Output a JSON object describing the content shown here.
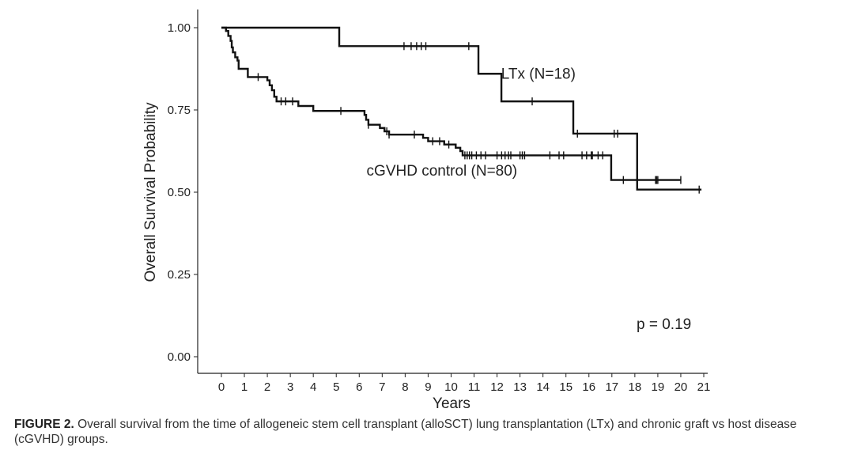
{
  "chart_data": {
    "type": "line",
    "subtype": "kaplan-meier",
    "xlabel": "Years",
    "ylabel": "Overall Survival Probability",
    "xlim": [
      0,
      21
    ],
    "ylim": [
      0,
      1
    ],
    "xticks": [
      "0",
      "1",
      "2",
      "3",
      "4",
      "5",
      "6",
      "7",
      "8",
      "9",
      "10",
      "11",
      "12",
      "13",
      "14",
      "15",
      "16",
      "17",
      "18",
      "19",
      "20",
      "21"
    ],
    "yticks": [
      "0.00",
      "0.25",
      "0.50",
      "0.75",
      "1.00"
    ],
    "annotation": "p = 0.19",
    "series": [
      {
        "name": "LTx (N=18)",
        "label_at": [
          13.8,
          0.845
        ],
        "steps": [
          [
            0,
            1.0
          ],
          [
            5.13,
            0.944
          ],
          [
            11.19,
            0.86
          ],
          [
            12.19,
            0.776
          ],
          [
            15.32,
            0.678
          ],
          [
            18.1,
            0.508
          ]
        ],
        "end": 20.9,
        "censored": [
          7.95,
          8.26,
          8.5,
          8.7,
          8.9,
          10.77,
          13.53,
          15.5,
          17.1,
          17.25,
          20.8
        ]
      },
      {
        "name": "cGVHD control (N=80)",
        "label_at": [
          9.6,
          0.55
        ],
        "steps": [
          [
            0,
            1.0
          ],
          [
            0.2,
            0.99
          ],
          [
            0.3,
            0.975
          ],
          [
            0.4,
            0.96
          ],
          [
            0.45,
            0.94
          ],
          [
            0.5,
            0.925
          ],
          [
            0.6,
            0.91
          ],
          [
            0.7,
            0.9
          ],
          [
            0.75,
            0.875
          ],
          [
            1.15,
            0.85
          ],
          [
            2.0,
            0.84
          ],
          [
            2.1,
            0.825
          ],
          [
            2.2,
            0.81
          ],
          [
            2.3,
            0.79
          ],
          [
            2.4,
            0.776
          ],
          [
            3.35,
            0.762
          ],
          [
            4.0,
            0.747
          ],
          [
            6.23,
            0.735
          ],
          [
            6.3,
            0.72
          ],
          [
            6.4,
            0.705
          ],
          [
            6.9,
            0.695
          ],
          [
            7.1,
            0.685
          ],
          [
            7.3,
            0.675
          ],
          [
            8.78,
            0.665
          ],
          [
            9.0,
            0.655
          ],
          [
            9.7,
            0.645
          ],
          [
            10.2,
            0.635
          ],
          [
            10.4,
            0.625
          ],
          [
            10.5,
            0.612
          ],
          [
            16.97,
            0.537
          ]
        ],
        "end": 20.0,
        "censored": [
          1.6,
          2.6,
          2.8,
          3.1,
          5.2,
          6.4,
          7.2,
          7.3,
          8.4,
          9.2,
          9.5,
          9.9,
          10.6,
          10.7,
          10.8,
          10.9,
          11.1,
          11.3,
          11.5,
          12.0,
          12.2,
          12.35,
          12.5,
          12.6,
          13.0,
          13.1,
          13.2,
          14.3,
          14.7,
          14.9,
          15.7,
          15.9,
          16.1,
          16.15,
          16.4,
          16.6,
          17.5,
          18.9,
          18.95,
          19.0,
          20.0
        ]
      }
    ]
  },
  "caption": {
    "label": "FIGURE 2.",
    "text": "Overall survival from the time of allogeneic stem cell transplant (alloSCT) lung transplantation (LTx) and chronic graft vs host disease (cGVHD) groups."
  }
}
